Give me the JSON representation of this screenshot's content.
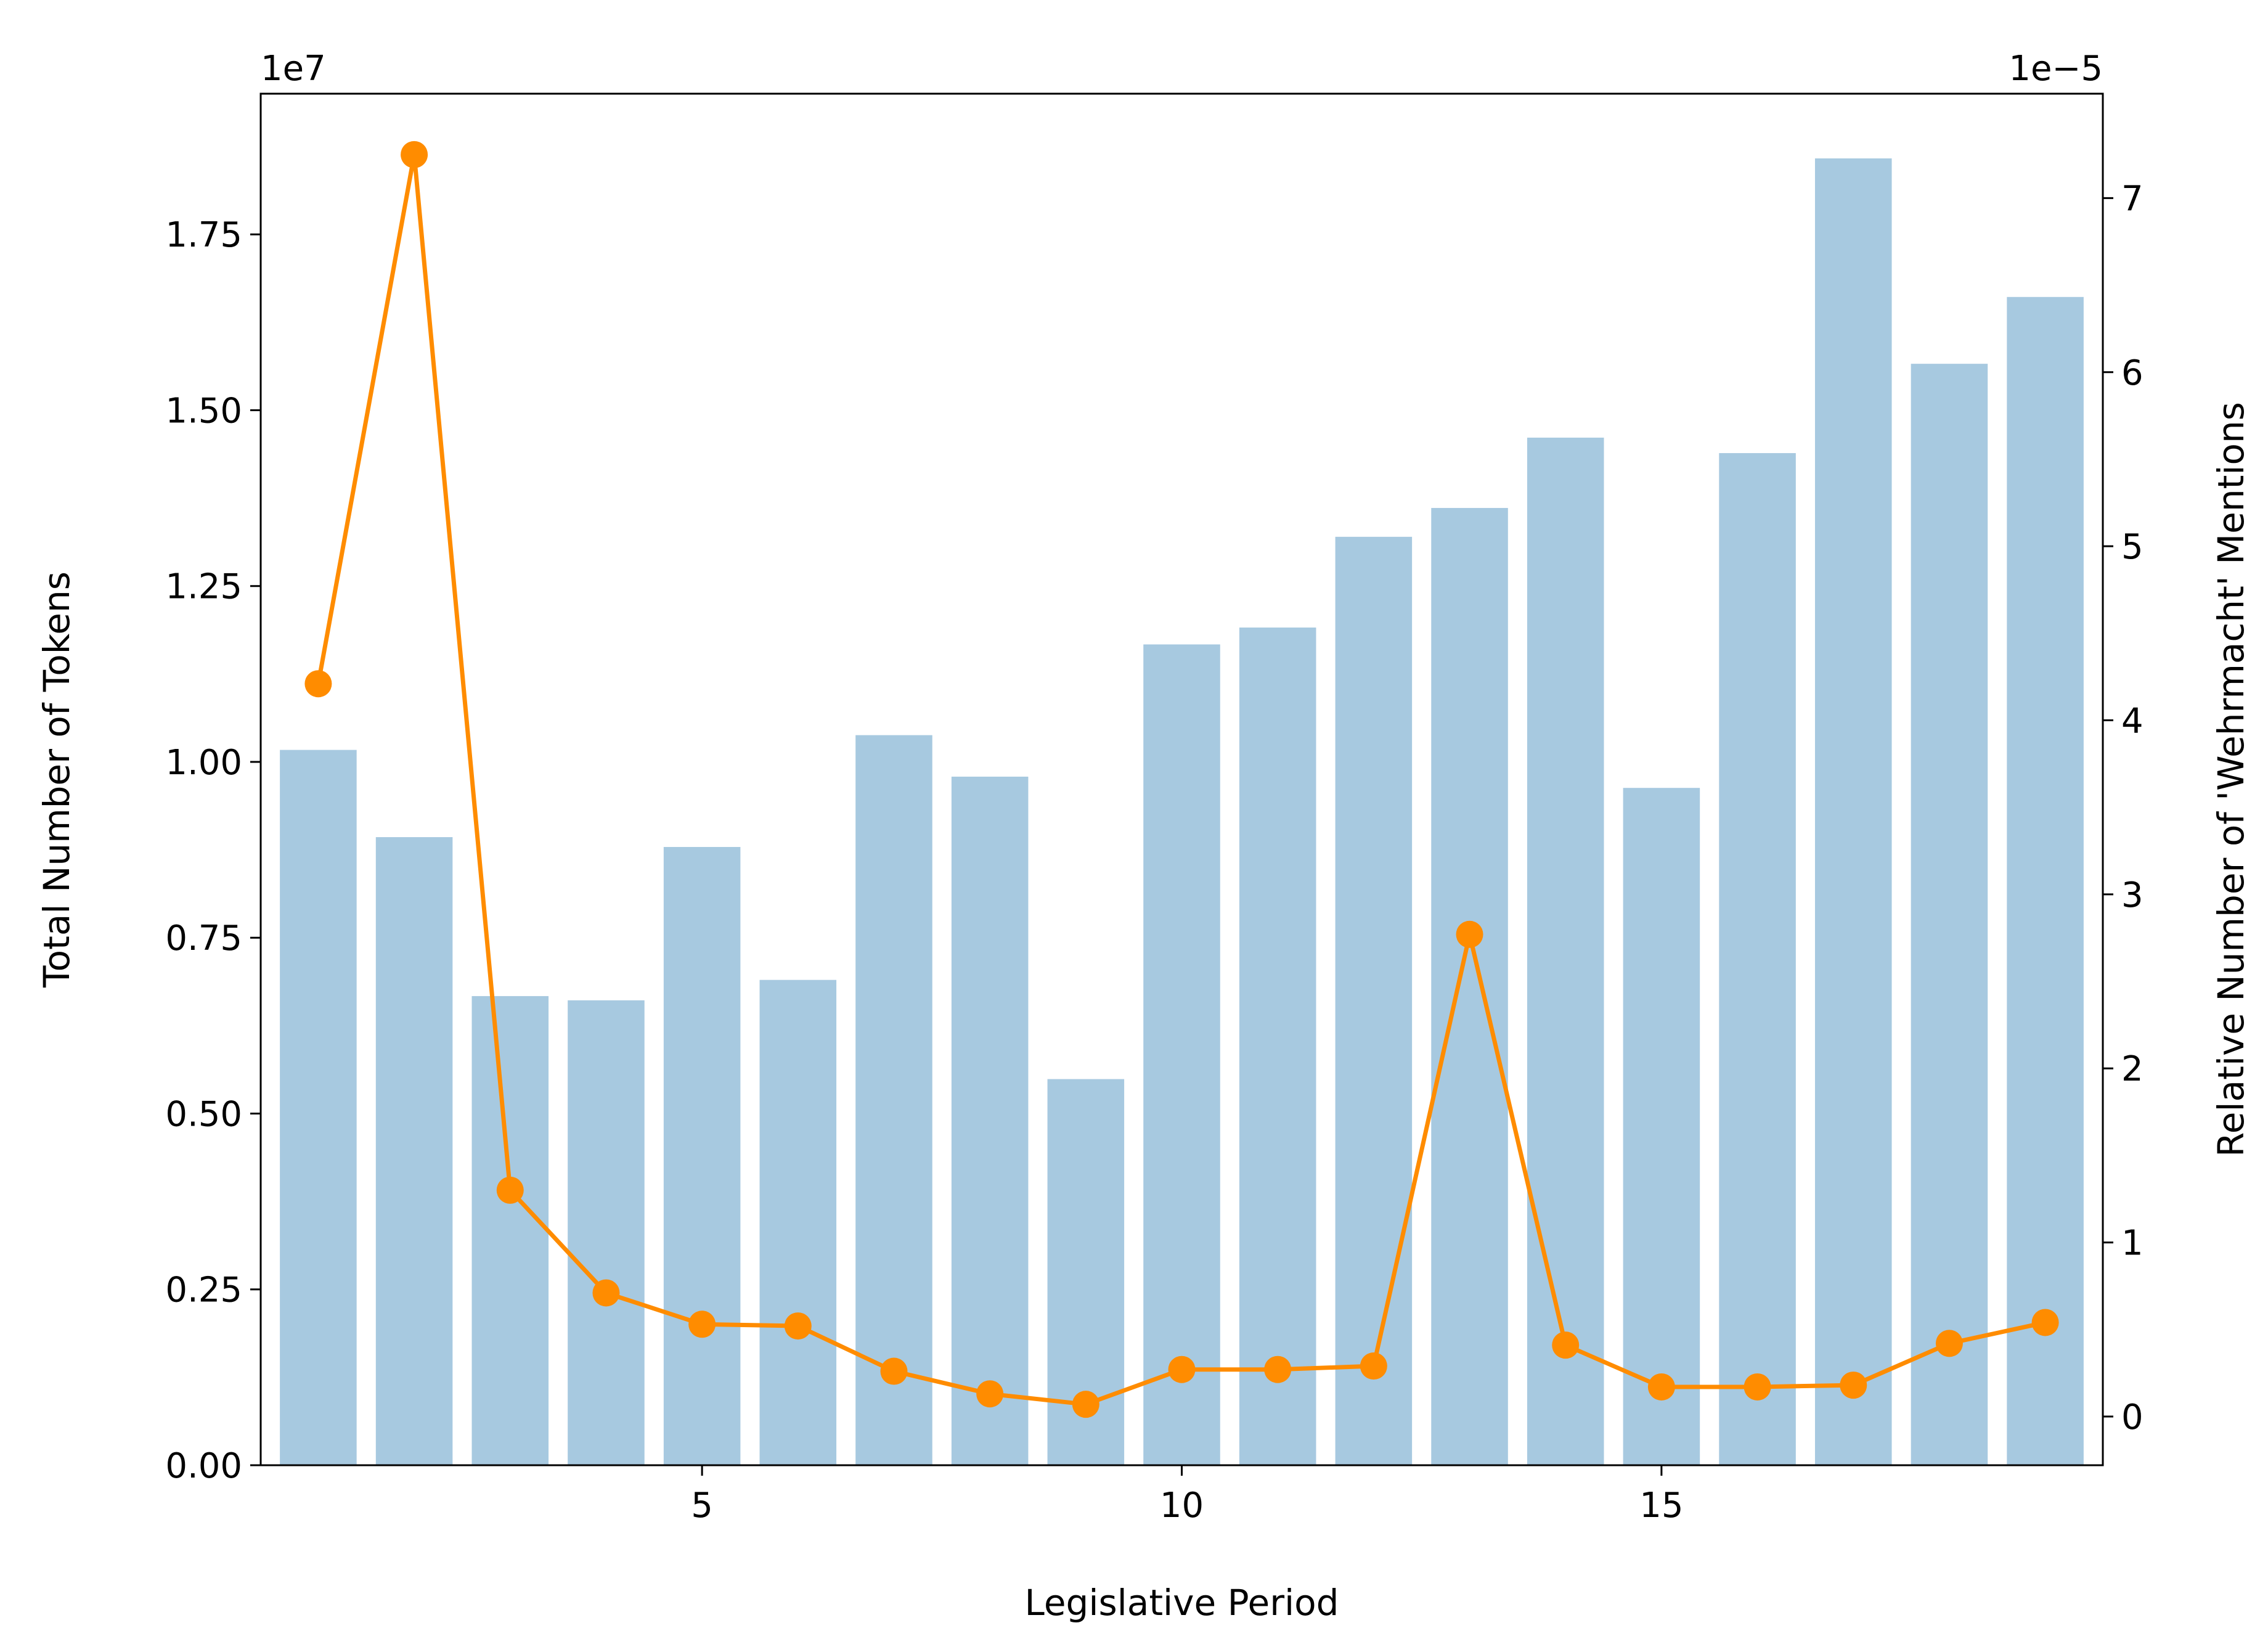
{
  "chart_data": {
    "type": "bar",
    "title": "",
    "xlabel": "Legislative Period",
    "ylabel": "Total Number of Tokens",
    "y2label": "Relative Number of 'Wehrmacht' Mentions",
    "y_offset_label": "1e7",
    "y2_offset_label": "1e−5",
    "x": [
      1,
      2,
      3,
      4,
      5,
      6,
      7,
      8,
      9,
      10,
      11,
      12,
      13,
      14,
      15,
      16,
      17,
      18,
      19
    ],
    "xlim": [
      0.4,
      19.6
    ],
    "xticks": [
      5,
      10,
      15
    ],
    "xtick_labels": [
      "5",
      "10",
      "15"
    ],
    "ylim": [
      0,
      1.95
    ],
    "yticks": [
      0,
      0.25,
      0.5,
      0.75,
      1.0,
      1.25,
      1.5,
      1.75
    ],
    "ytick_labels": [
      "0.00",
      "0.25",
      "0.50",
      "0.75",
      "1.00",
      "1.25",
      "1.50",
      "1.75"
    ],
    "y2lim": [
      -0.28,
      7.6
    ],
    "y2ticks": [
      0,
      1,
      2,
      3,
      4,
      5,
      6,
      7
    ],
    "y2tick_labels": [
      "0",
      "1",
      "2",
      "3",
      "4",
      "5",
      "6",
      "7"
    ],
    "grid": false,
    "series": [
      {
        "axis": "left",
        "kind": "bar",
        "color": "#a7c9e0",
        "values": [
          1.017,
          0.893,
          0.667,
          0.661,
          0.879,
          0.69,
          1.038,
          0.979,
          0.549,
          1.167,
          1.191,
          1.32,
          1.361,
          1.461,
          0.963,
          1.439,
          1.858,
          1.566,
          1.661
        ]
      },
      {
        "axis": "right",
        "kind": "line",
        "color": "#ff8c00",
        "marker": "circle",
        "values": [
          4.21,
          7.25,
          1.3,
          0.71,
          0.53,
          0.52,
          0.26,
          0.13,
          0.07,
          0.27,
          0.27,
          0.29,
          2.77,
          0.41,
          0.17,
          0.17,
          0.18,
          0.42,
          0.54
        ]
      }
    ]
  }
}
